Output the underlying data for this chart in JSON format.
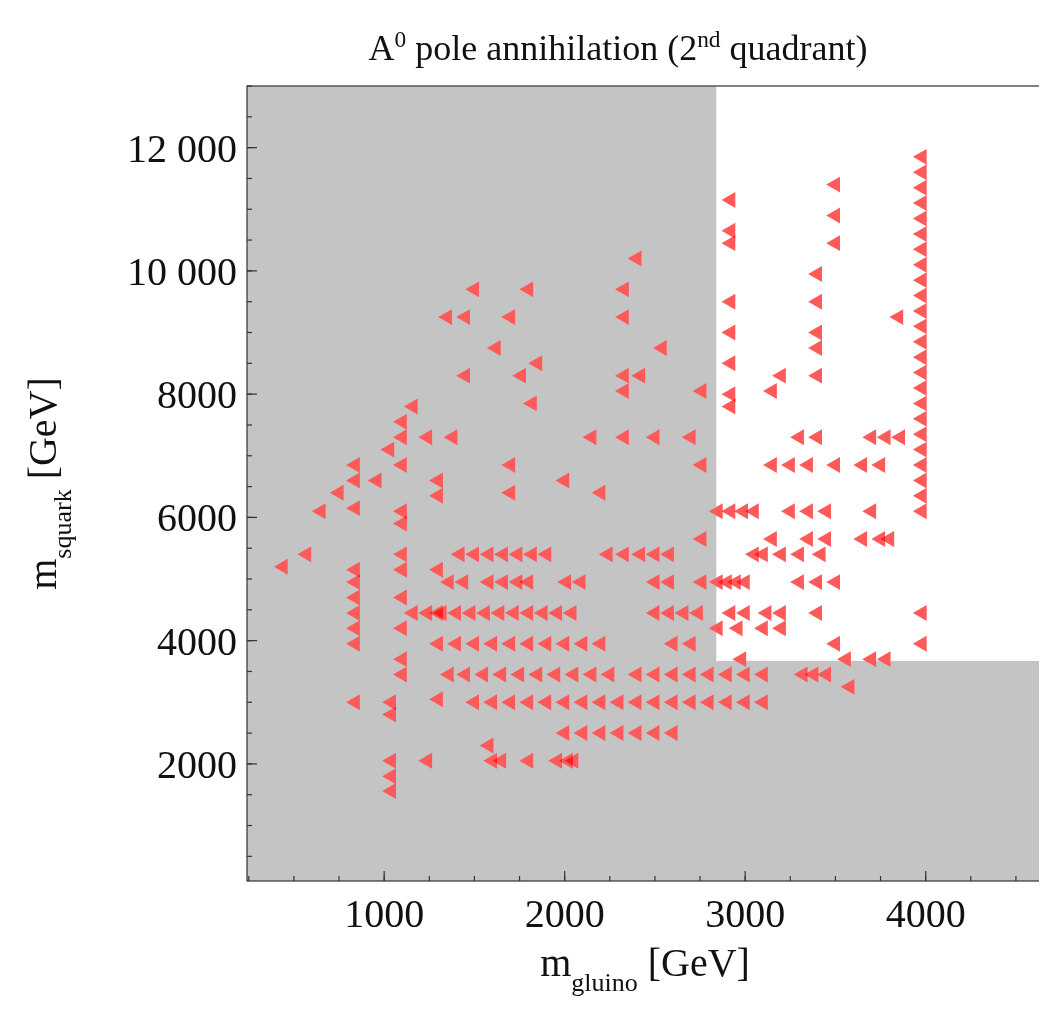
{
  "chart_data": {
    "type": "scatter",
    "title": "A$^{0}$ pole annihilation (2$^{nd}$ quadrant)",
    "xlabel": "m$_{gluino}$ [GeV]",
    "ylabel": "m$_{squark}$ [GeV]",
    "xlim": [
      240,
      4650
    ],
    "ylim": [
      100,
      13000
    ],
    "xticks": [
      1000,
      2000,
      3000,
      4000
    ],
    "yticks": [
      {
        "value": 2000,
        "label": "2000"
      },
      {
        "value": 4000,
        "label": "4000"
      },
      {
        "value": 6000,
        "label": "6000"
      },
      {
        "value": 8000,
        "label": "8000"
      },
      {
        "value": 10000,
        "label": "10 000"
      },
      {
        "value": 12000,
        "label": "12 000"
      }
    ],
    "marker": "triangle",
    "grid": false,
    "bands": [
      {
        "axis": "x",
        "from": 240,
        "to": 2840,
        "color": "#c4c4c4"
      },
      {
        "axis": "y",
        "from": 100,
        "to": 3670,
        "color": "#c4c4c4"
      }
    ],
    "series": [
      {
        "color": "#ff5a5a",
        "x": [
          440,
          570,
          650,
          750,
          840,
          840,
          840,
          840,
          840,
          840,
          840,
          840,
          840,
          840,
          960,
          1030,
          1040,
          1040,
          1040,
          1040,
          1040,
          1100,
          1100,
          1100,
          1100,
          1100,
          1100,
          1100,
          1100,
          1100,
          1100,
          1100,
          1160,
          1240,
          1240,
          1300,
          1300,
          1300,
          1300,
          1300,
          1350,
          1380,
          1450,
          1450,
          1500,
          1580,
          1620,
          1700,
          1700,
          1700,
          1760,
          1800,
          1820,
          1850,
          2000,
          2050,
          2150,
          2200,
          2400,
          2330,
          2330,
          2330,
          2330,
          2420,
          2540,
          2330,
          2500,
          2700,
          2760,
          2760,
          2760,
          2760,
          1420,
          1500,
          1580,
          1660,
          1740,
          1820,
          1900,
          2240,
          2330,
          2420,
          2500,
          2580,
          1360,
          1440,
          1580,
          1660,
          1740,
          1800,
          2010,
          2090,
          2500,
          2580,
          1160,
          1240,
          1320,
          1400,
          1480,
          1560,
          1640,
          1720,
          1800,
          1880,
          1960,
          2040,
          2500,
          2580,
          2660,
          2740,
          1300,
          1400,
          1500,
          1600,
          1700,
          1800,
          1900,
          2000,
          2100,
          2200,
          2600,
          2700,
          1360,
          1450,
          1550,
          1650,
          1750,
          1850,
          1950,
          2050,
          2150,
          2250,
          2400,
          2500,
          2600,
          2700,
          2800,
          2900,
          3000,
          3100,
          1500,
          1600,
          1700,
          1800,
          1900,
          2000,
          2100,
          2200,
          2300,
          2400,
          2500,
          2600,
          2700,
          2800,
          2900,
          3000,
          3100,
          2000,
          2100,
          2200,
          2300,
          2400,
          2500,
          2600,
          1600,
          1650,
          1800,
          1960,
          2020,
          3980,
          3980,
          3980,
          3980,
          3980,
          3980,
          3980,
          3980,
          3980,
          3980,
          3980,
          3980,
          3980,
          3980,
          3980,
          3980,
          3980,
          3980,
          3980,
          3980,
          3980,
          3980,
          3980,
          3980,
          3980,
          2920,
          2920,
          2920,
          2920,
          2920,
          2920,
          2920,
          2920,
          3500,
          3500,
          3500,
          3400,
          3400,
          3400,
          3400,
          3400,
          3850,
          3200,
          3150,
          3300,
          3400,
          3700,
          3780,
          3860,
          3150,
          3250,
          3350,
          3500,
          3650,
          3750,
          2850,
          2920,
          2990,
          3050,
          3250,
          3350,
          3450,
          3700,
          3150,
          3350,
          3450,
          3650,
          3750,
          3800,
          3050,
          3100,
          3200,
          3300,
          3420,
          2850,
          2900,
          2950,
          3000,
          3300,
          3400,
          3500,
          2920,
          3000,
          3120,
          3200,
          3400,
          2850,
          2960,
          3100,
          3200,
          3500,
          3980,
          2980,
          3560,
          3700,
          3780,
          3320,
          3380,
          3450,
          3580
        ],
        "values": [
          5200,
          5400,
          6100,
          6400,
          6850,
          6600,
          6150,
          5150,
          4950,
          4700,
          4450,
          4200,
          3950,
          3000,
          6600,
          7100,
          2050,
          1800,
          1560,
          2800,
          3000,
          7300,
          7550,
          6850,
          6100,
          5900,
          5400,
          5150,
          4700,
          4200,
          3700,
          3450,
          7800,
          7300,
          2050,
          6600,
          6350,
          5150,
          4450,
          3050,
          9250,
          7300,
          9250,
          8300,
          9700,
          2300,
          8750,
          9250,
          6850,
          6400,
          8300,
          9700,
          7850,
          8500,
          6600,
          2050,
          7300,
          6400,
          10200,
          9700,
          9250,
          8300,
          8050,
          8300,
          8750,
          7300,
          7300,
          7300,
          8050,
          6850,
          5650,
          4950,
          5400,
          5400,
          5400,
          5400,
          5400,
          5400,
          5400,
          5400,
          5400,
          5400,
          5400,
          5400,
          4950,
          4950,
          4950,
          4950,
          4950,
          4950,
          4950,
          4950,
          4950,
          4950,
          4450,
          4450,
          4450,
          4450,
          4450,
          4450,
          4450,
          4450,
          4450,
          4450,
          4450,
          4450,
          4450,
          4450,
          4450,
          4450,
          3950,
          3950,
          3950,
          3950,
          3950,
          3950,
          3950,
          3950,
          3950,
          3950,
          3950,
          3950,
          3450,
          3450,
          3450,
          3450,
          3450,
          3450,
          3450,
          3450,
          3450,
          3450,
          3450,
          3450,
          3450,
          3450,
          3450,
          3450,
          3450,
          3450,
          3000,
          3000,
          3000,
          3000,
          3000,
          3000,
          3000,
          3000,
          3000,
          3000,
          3000,
          3000,
          3000,
          3000,
          3000,
          3000,
          3000,
          2500,
          2500,
          2500,
          2500,
          2500,
          2500,
          2500,
          2050,
          2050,
          2050,
          2050,
          2050,
          11850,
          11600,
          11350,
          11100,
          10850,
          10600,
          10350,
          10100,
          9850,
          9600,
          9350,
          9100,
          8850,
          8600,
          8350,
          8100,
          7850,
          7600,
          7350,
          7100,
          6850,
          6600,
          6350,
          6100,
          4450,
          11150,
          10650,
          10450,
          9500,
          9000,
          8500,
          8000,
          7800,
          11400,
          10900,
          10450,
          9950,
          9500,
          9000,
          8750,
          8300,
          9250,
          8300,
          8050,
          7300,
          7300,
          7300,
          7300,
          7300,
          6850,
          6850,
          6850,
          6850,
          6850,
          6850,
          6100,
          6100,
          6100,
          6100,
          6100,
          6100,
          6100,
          6100,
          5650,
          5650,
          5650,
          5650,
          5650,
          5650,
          5400,
          5400,
          5400,
          5400,
          5400,
          4950,
          4950,
          4950,
          4950,
          4950,
          4950,
          4950,
          4450,
          4450,
          4450,
          4450,
          4450,
          4200,
          4200,
          4200,
          4200,
          3950,
          3950,
          3700,
          3700,
          3700,
          3700,
          3450,
          3450,
          3450,
          3250
        ]
      }
    ]
  }
}
